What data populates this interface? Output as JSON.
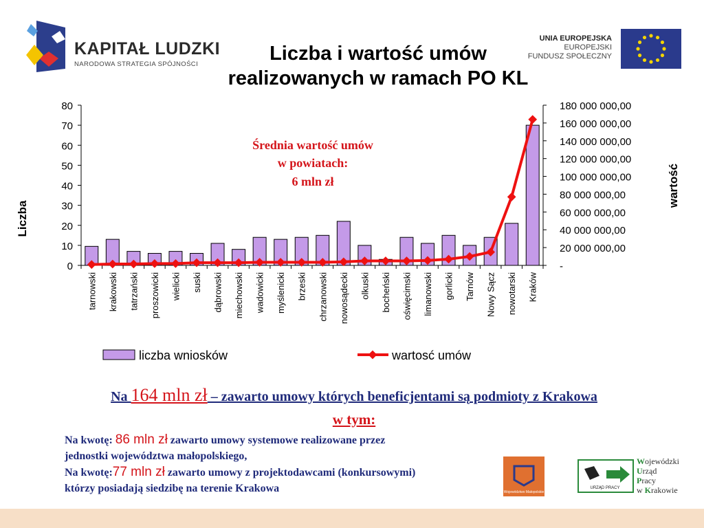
{
  "header": {
    "title_line1": "Liczba i wartość umów",
    "title_line2": "realizowanych w ramach PO KL",
    "kl_logo": {
      "name": "KAPITAŁ LUDZKI",
      "subtitle": "NARODOWA STRATEGIA SPÓJNOŚCI"
    },
    "eu_logo": {
      "line1": "UNIA EUROPEJSKA",
      "line2": "EUROPEJSKI",
      "line3": "FUNDUSZ SPOŁECZNY",
      "flag_icon": "eu-flag-icon"
    }
  },
  "chart_data": {
    "type": "bar",
    "categories": [
      "tarnowski",
      "krakowski",
      "tatrzański",
      "proszowicki",
      "wielicki",
      "suski",
      "dąbrowski",
      "miechowski",
      "wadowicki",
      "myślenicki",
      "brzeski",
      "chrzanowski",
      "nowosądecki",
      "olkuski",
      "bocheński",
      "oświęcimski",
      "limanowski",
      "gorlicki",
      "Tarnów",
      "Nowy Sącz",
      "nowotarski",
      "Kraków"
    ],
    "series": [
      {
        "name": "liczba wniosków",
        "type": "bar",
        "axis": "left",
        "color": "#c49ae8",
        "values": [
          9.5,
          13,
          7,
          6,
          7,
          6,
          11,
          8,
          14,
          13,
          14,
          15,
          22,
          10,
          3,
          14,
          11,
          15,
          10,
          14,
          21,
          70
        ]
      },
      {
        "name": "wartosć umów",
        "type": "line",
        "axis": "right",
        "color": "#ee1111",
        "values": [
          1000000,
          1500000,
          1500000,
          2000000,
          2000000,
          3000000,
          3000000,
          3000000,
          3500000,
          3500000,
          3500000,
          3500000,
          4000000,
          5000000,
          5000000,
          5000000,
          5500000,
          7000000,
          10000000,
          15000000,
          77000000,
          164000000
        ]
      }
    ],
    "ylabel_left": "Liczba",
    "ylabel_right": "wartość",
    "ylim_left": [
      0,
      80
    ],
    "yticks_left": [
      "0",
      "10",
      "20",
      "30",
      "40",
      "50",
      "60",
      "70",
      "80"
    ],
    "ylim_right": [
      0,
      180000000
    ],
    "yticks_right": [
      "-",
      "20 000 000,00",
      "40 000 000,00",
      "60 000 000,00",
      "80 000 000,00",
      "100 000 000,00",
      "120 000 000,00",
      "140 000 000,00",
      "160 000 000,00",
      "180 000 000,00"
    ],
    "annotation": {
      "line1": "Średnia wartość umów",
      "line2": "w powiatach:",
      "line3": "6 mln zł",
      "color": "#d4141a"
    },
    "legend_position": "bottom",
    "grid": false
  },
  "summary": {
    "prefix": "Na ",
    "amount": "164 mln zł",
    "text": " – zawarto umowy których beneficjentami są podmioty z Krakowa",
    "subhead": "w tym:"
  },
  "details": {
    "line1_prefix": "Na kwotę: ",
    "line1_amount": "86 mln zł",
    "line1_text": " zawarto umowy systemowe realizowane przez",
    "line2": "jednostki województwa małopolskiego,",
    "line3_prefix": "Na kwotę:",
    "line3_amount": "77 mln zł",
    "line3_text": " zawarto umowy z projektodawcami (konkursowymi)",
    "line4": "którzy posiadają siedzibę na terenie Krakowa"
  },
  "footer_logos": {
    "malopolska_caption": "Województwo Małopolskie",
    "wup_box_caption": "URZĄD PRACY",
    "wup_line1_w": "W",
    "wup_line1": "ojewódzki",
    "wup_line2_u": "U",
    "wup_line2": "rząd",
    "wup_line3_p": "P",
    "wup_line3": "racy",
    "wup_line4_prefix": "w ",
    "wup_line4_k": "K",
    "wup_line4": "rakowie"
  }
}
